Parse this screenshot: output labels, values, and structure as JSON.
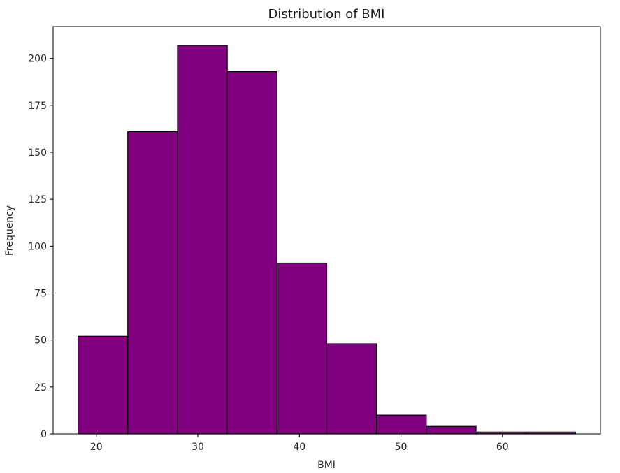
{
  "chart_data": {
    "type": "bar",
    "title": "Distribution of BMI",
    "xlabel": "BMI",
    "ylabel": "Frequency",
    "bin_edges": [
      18.2,
      23.1,
      28.0,
      32.9,
      37.8,
      42.7,
      47.6,
      52.5,
      57.4,
      62.3,
      67.2
    ],
    "values": [
      52,
      161,
      207,
      193,
      91,
      48,
      10,
      4,
      1,
      1
    ],
    "xlim": [
      15.75,
      69.65
    ],
    "ylim": [
      0,
      217
    ],
    "xticks": [
      20,
      30,
      40,
      50,
      60
    ],
    "yticks": [
      0,
      25,
      50,
      75,
      100,
      125,
      150,
      175,
      200
    ],
    "bar_color": "#800080",
    "edge_color": "#000000",
    "grid": false,
    "legend": "none"
  }
}
